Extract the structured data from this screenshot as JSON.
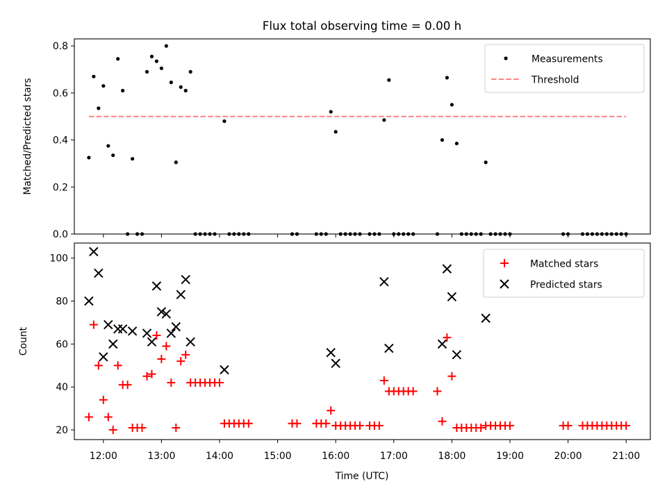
{
  "title": "Flux total observing time = 0.00 h",
  "colors": {
    "measure": "#000000",
    "threshold": "#ff8080",
    "matched": "#ff0000",
    "predicted": "#000000"
  },
  "chart_data": [
    {
      "type": "scatter",
      "ylabel": "Matched/Predicted stars",
      "ylim": [
        0,
        0.83
      ],
      "yticks": [
        "0.0",
        "0.2",
        "0.4",
        "0.6",
        "0.8"
      ],
      "ytick_values": [
        0,
        0.2,
        0.4,
        0.6,
        0.8
      ],
      "legend_position": "top-right",
      "legend": {
        "measurements": "Measurements",
        "threshold": "Threshold"
      },
      "threshold": {
        "value": 0.5,
        "x_start": "11:45",
        "x_end": "21:00"
      },
      "series": [
        {
          "name": "Measurements",
          "points": [
            [
              "11:45",
              0.325
            ],
            [
              "11:50",
              0.67
            ],
            [
              "11:55",
              0.535
            ],
            [
              "12:00",
              0.63
            ],
            [
              "12:05",
              0.375
            ],
            [
              "12:10",
              0.335
            ],
            [
              "12:15",
              0.745
            ],
            [
              "12:20",
              0.61
            ],
            [
              "12:25",
              0.0
            ],
            [
              "12:30",
              0.32
            ],
            [
              "12:35",
              0.0
            ],
            [
              "12:40",
              0.0
            ],
            [
              "12:45",
              0.69
            ],
            [
              "12:50",
              0.755
            ],
            [
              "12:55",
              0.735
            ],
            [
              "13:00",
              0.705
            ],
            [
              "13:05",
              0.8
            ],
            [
              "13:10",
              0.645
            ],
            [
              "13:15",
              0.305
            ],
            [
              "13:20",
              0.625
            ],
            [
              "13:25",
              0.61
            ],
            [
              "13:30",
              0.69
            ],
            [
              "13:35",
              0.0
            ],
            [
              "13:40",
              0.0
            ],
            [
              "13:45",
              0.0
            ],
            [
              "13:50",
              0.0
            ],
            [
              "13:55",
              0.0
            ],
            [
              "14:05",
              0.48
            ],
            [
              "14:10",
              0.0
            ],
            [
              "14:15",
              0.0
            ],
            [
              "14:20",
              0.0
            ],
            [
              "14:25",
              0.0
            ],
            [
              "14:30",
              0.0
            ],
            [
              "15:15",
              0.0
            ],
            [
              "15:20",
              0.0
            ],
            [
              "15:40",
              0.0
            ],
            [
              "15:45",
              0.0
            ],
            [
              "15:50",
              0.0
            ],
            [
              "15:55",
              0.52
            ],
            [
              "16:00",
              0.435
            ],
            [
              "16:05",
              0.0
            ],
            [
              "16:10",
              0.0
            ],
            [
              "16:15",
              0.0
            ],
            [
              "16:20",
              0.0
            ],
            [
              "16:25",
              0.0
            ],
            [
              "16:35",
              0.0
            ],
            [
              "16:40",
              0.0
            ],
            [
              "16:45",
              0.0
            ],
            [
              "16:50",
              0.485
            ],
            [
              "16:55",
              0.655
            ],
            [
              "17:00",
              0.0
            ],
            [
              "17:05",
              0.0
            ],
            [
              "17:10",
              0.0
            ],
            [
              "17:15",
              0.0
            ],
            [
              "17:20",
              0.0
            ],
            [
              "17:45",
              0.0
            ],
            [
              "17:50",
              0.4
            ],
            [
              "17:55",
              0.665
            ],
            [
              "18:00",
              0.55
            ],
            [
              "18:05",
              0.385
            ],
            [
              "18:10",
              0.0
            ],
            [
              "18:15",
              0.0
            ],
            [
              "18:20",
              0.0
            ],
            [
              "18:25",
              0.0
            ],
            [
              "18:30",
              0.0
            ],
            [
              "18:35",
              0.305
            ],
            [
              "18:40",
              0.0
            ],
            [
              "18:45",
              0.0
            ],
            [
              "18:50",
              0.0
            ],
            [
              "18:55",
              0.0
            ],
            [
              "19:00",
              0.0
            ],
            [
              "19:55",
              0.0
            ],
            [
              "20:00",
              0.0
            ],
            [
              "20:15",
              0.0
            ],
            [
              "20:20",
              0.0
            ],
            [
              "20:25",
              0.0
            ],
            [
              "20:30",
              0.0
            ],
            [
              "20:35",
              0.0
            ],
            [
              "20:40",
              0.0
            ],
            [
              "20:45",
              0.0
            ],
            [
              "20:50",
              0.0
            ],
            [
              "20:55",
              0.0
            ],
            [
              "21:00",
              0.0
            ]
          ]
        }
      ]
    },
    {
      "type": "scatter",
      "xlabel": "Time (UTC)",
      "ylabel": "Count",
      "ylim": [
        15.5,
        107
      ],
      "yticks": [
        "20",
        "40",
        "60",
        "80",
        "100"
      ],
      "ytick_values": [
        20,
        40,
        60,
        80,
        100
      ],
      "xticks": [
        "12:00",
        "13:00",
        "14:00",
        "15:00",
        "16:00",
        "17:00",
        "18:00",
        "19:00",
        "20:00",
        "21:00"
      ],
      "xrange": [
        "11:30",
        "21:25"
      ],
      "legend_position": "top-right",
      "legend": {
        "matched": "Matched stars",
        "predicted": "Predicted stars"
      },
      "series": [
        {
          "name": "Matched stars",
          "points": [
            [
              "11:45",
              26
            ],
            [
              "11:50",
              69
            ],
            [
              "11:55",
              50
            ],
            [
              "12:00",
              34
            ],
            [
              "12:05",
              26
            ],
            [
              "12:10",
              20
            ],
            [
              "12:15",
              50
            ],
            [
              "12:20",
              41
            ],
            [
              "12:25",
              41
            ],
            [
              "12:30",
              21
            ],
            [
              "12:35",
              21
            ],
            [
              "12:40",
              21
            ],
            [
              "12:45",
              45
            ],
            [
              "12:50",
              46
            ],
            [
              "12:55",
              64
            ],
            [
              "13:00",
              53
            ],
            [
              "13:05",
              59
            ],
            [
              "13:10",
              42
            ],
            [
              "13:15",
              21
            ],
            [
              "13:20",
              52
            ],
            [
              "13:25",
              55
            ],
            [
              "13:30",
              42
            ],
            [
              "13:35",
              42
            ],
            [
              "13:40",
              42
            ],
            [
              "13:45",
              42
            ],
            [
              "13:50",
              42
            ],
            [
              "13:55",
              42
            ],
            [
              "14:00",
              42
            ],
            [
              "14:05",
              23
            ],
            [
              "14:10",
              23
            ],
            [
              "14:15",
              23
            ],
            [
              "14:20",
              23
            ],
            [
              "14:25",
              23
            ],
            [
              "14:30",
              23
            ],
            [
              "15:15",
              23
            ],
            [
              "15:20",
              23
            ],
            [
              "15:40",
              23
            ],
            [
              "15:45",
              23
            ],
            [
              "15:50",
              23
            ],
            [
              "15:55",
              29
            ],
            [
              "16:00",
              22
            ],
            [
              "16:05",
              22
            ],
            [
              "16:10",
              22
            ],
            [
              "16:15",
              22
            ],
            [
              "16:20",
              22
            ],
            [
              "16:25",
              22
            ],
            [
              "16:35",
              22
            ],
            [
              "16:40",
              22
            ],
            [
              "16:45",
              22
            ],
            [
              "16:50",
              43
            ],
            [
              "16:55",
              38
            ],
            [
              "17:00",
              38
            ],
            [
              "17:05",
              38
            ],
            [
              "17:10",
              38
            ],
            [
              "17:15",
              38
            ],
            [
              "17:20",
              38
            ],
            [
              "17:45",
              38
            ],
            [
              "17:50",
              24
            ],
            [
              "17:55",
              63
            ],
            [
              "18:00",
              45
            ],
            [
              "18:05",
              21
            ],
            [
              "18:10",
              21
            ],
            [
              "18:15",
              21
            ],
            [
              "18:20",
              21
            ],
            [
              "18:25",
              21
            ],
            [
              "18:30",
              21
            ],
            [
              "18:35",
              22
            ],
            [
              "18:40",
              22
            ],
            [
              "18:45",
              22
            ],
            [
              "18:50",
              22
            ],
            [
              "18:55",
              22
            ],
            [
              "19:00",
              22
            ],
            [
              "19:55",
              22
            ],
            [
              "20:00",
              22
            ],
            [
              "20:15",
              22
            ],
            [
              "20:20",
              22
            ],
            [
              "20:25",
              22
            ],
            [
              "20:30",
              22
            ],
            [
              "20:35",
              22
            ],
            [
              "20:40",
              22
            ],
            [
              "20:45",
              22
            ],
            [
              "20:50",
              22
            ],
            [
              "20:55",
              22
            ],
            [
              "21:00",
              22
            ]
          ]
        },
        {
          "name": "Predicted stars",
          "points": [
            [
              "11:45",
              80
            ],
            [
              "11:50",
              103
            ],
            [
              "11:55",
              93
            ],
            [
              "12:00",
              54
            ],
            [
              "12:05",
              69
            ],
            [
              "12:10",
              60
            ],
            [
              "12:15",
              67
            ],
            [
              "12:20",
              67
            ],
            [
              "12:30",
              66
            ],
            [
              "12:45",
              65
            ],
            [
              "12:50",
              61
            ],
            [
              "12:55",
              87
            ],
            [
              "13:00",
              75
            ],
            [
              "13:05",
              74
            ],
            [
              "13:10",
              65
            ],
            [
              "13:15",
              68
            ],
            [
              "13:20",
              83
            ],
            [
              "13:25",
              90
            ],
            [
              "13:30",
              61
            ],
            [
              "14:05",
              48
            ],
            [
              "15:55",
              56
            ],
            [
              "16:00",
              51
            ],
            [
              "16:50",
              89
            ],
            [
              "16:55",
              58
            ],
            [
              "17:50",
              60
            ],
            [
              "17:55",
              95
            ],
            [
              "18:00",
              82
            ],
            [
              "18:05",
              55
            ],
            [
              "18:35",
              72
            ]
          ]
        }
      ]
    }
  ]
}
